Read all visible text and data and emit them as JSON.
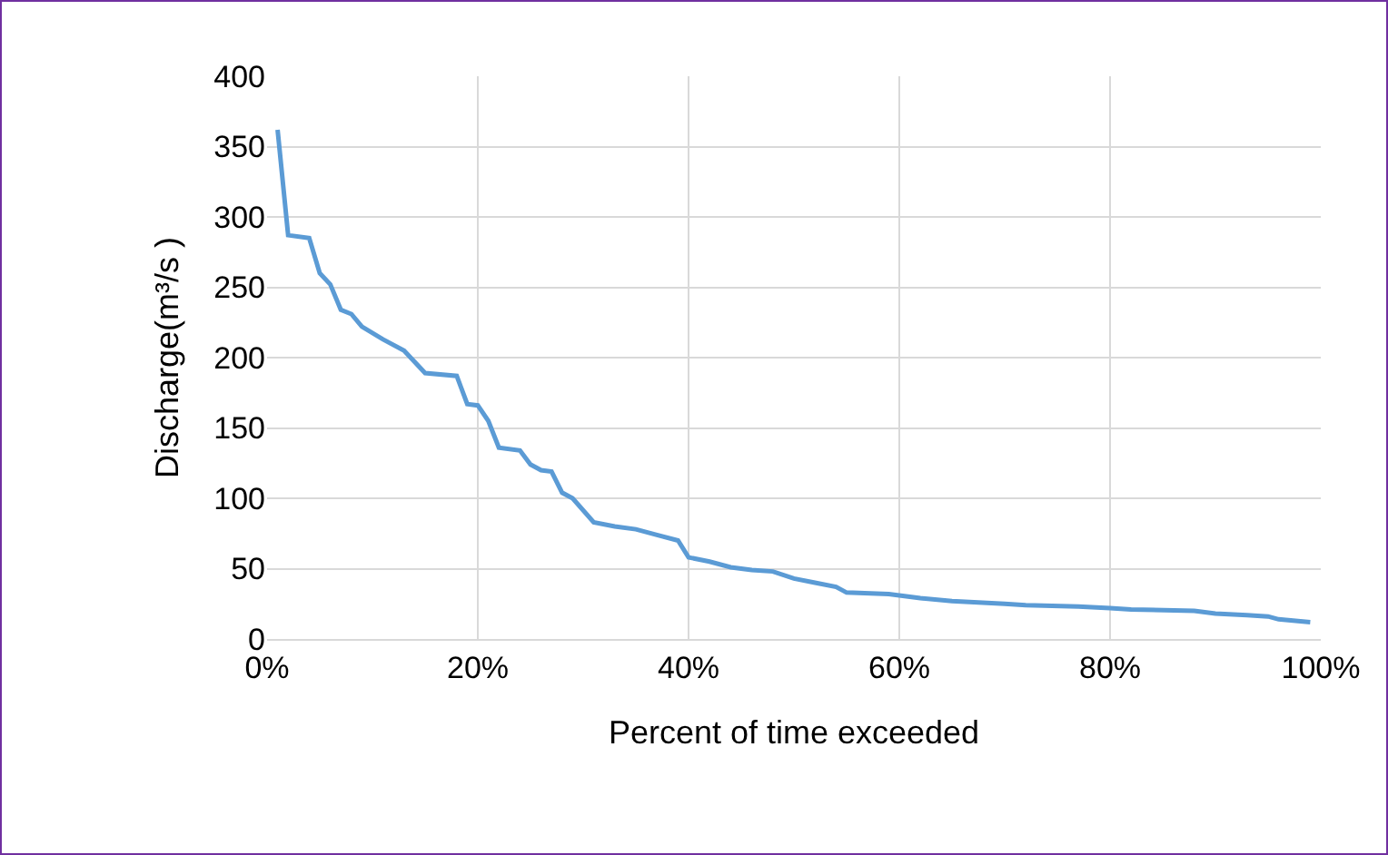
{
  "chart_data": {
    "type": "line",
    "xlabel": "Percent of time exceeded",
    "ylabel": "Discharge(m³/s )",
    "x": [
      1,
      2,
      4,
      5,
      6,
      7,
      8,
      9,
      11,
      13,
      15,
      18,
      19,
      20,
      21,
      22,
      24,
      25,
      26,
      27,
      28,
      29,
      31,
      33,
      35,
      37,
      39,
      40,
      42,
      44,
      46,
      48,
      50,
      52,
      54,
      55,
      59,
      62,
      65,
      70,
      72,
      77,
      80,
      82,
      88,
      90,
      93,
      95,
      96,
      99
    ],
    "series": [
      {
        "color": "#5b9bd5",
        "values": [
          362,
          287,
          285,
          260,
          252,
          234,
          231,
          222,
          213,
          205,
          189,
          187,
          167,
          166,
          155,
          136,
          134,
          124,
          120,
          119,
          104,
          100,
          83,
          80,
          78,
          74,
          70,
          58,
          55,
          51,
          49,
          48,
          43,
          40,
          37,
          33,
          32,
          29,
          27,
          25,
          24,
          23,
          22,
          21,
          20,
          18,
          17,
          16,
          14,
          12
        ]
      }
    ],
    "xlim": [
      0,
      100
    ],
    "xticks": [
      {
        "value": 0,
        "label": "0%"
      },
      {
        "value": 20,
        "label": "20%"
      },
      {
        "value": 40,
        "label": "40%"
      },
      {
        "value": 60,
        "label": "60%"
      },
      {
        "value": 80,
        "label": "80%"
      },
      {
        "value": 100,
        "label": "100%"
      }
    ],
    "ylim": [
      0,
      400
    ],
    "yticks": [
      0,
      50,
      100,
      150,
      200,
      250,
      300,
      350,
      400
    ],
    "grid": true,
    "marker": "none",
    "line_style": "solid"
  }
}
